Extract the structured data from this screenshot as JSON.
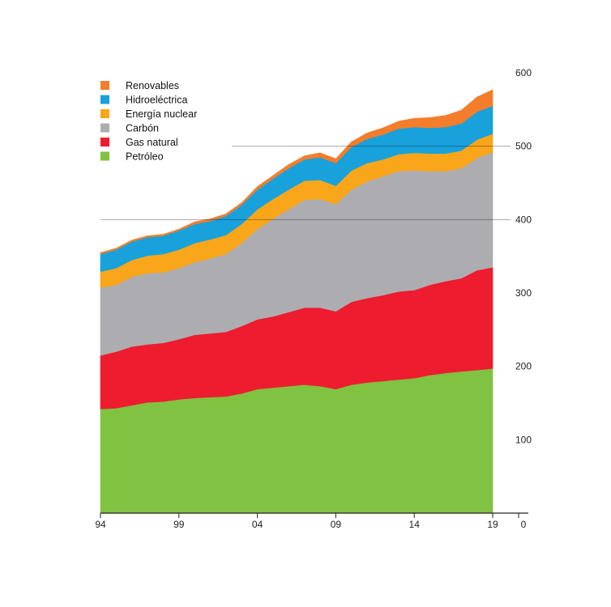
{
  "chart_data": {
    "type": "area",
    "stacked": true,
    "x": [
      1994,
      1995,
      1996,
      1997,
      1998,
      1999,
      2000,
      2001,
      2002,
      2003,
      2004,
      2005,
      2006,
      2007,
      2008,
      2009,
      2010,
      2011,
      2012,
      2013,
      2014,
      2015,
      2016,
      2017,
      2018,
      2019
    ],
    "x_tick_values": [
      1994,
      1999,
      2004,
      2009,
      2014,
      2019
    ],
    "x_tick_labels": [
      "94",
      "99",
      "04",
      "09",
      "14",
      "19"
    ],
    "y_ticks": [
      0,
      100,
      200,
      300,
      400,
      500,
      600
    ],
    "ylim": [
      0,
      600
    ],
    "ygrid_values": [
      400,
      500
    ],
    "y_axis_position": "right",
    "legend_position": "top-left",
    "series": [
      {
        "name": "Petróleo",
        "color": "#80c241",
        "values": [
          142,
          143,
          147,
          151,
          152,
          155,
          157,
          158,
          159,
          163,
          169,
          171,
          173,
          175,
          173,
          169,
          175,
          178,
          180,
          182,
          184,
          188,
          191,
          193,
          195,
          197
        ]
      },
      {
        "name": "Gas natural",
        "color": "#ed1c2e",
        "values": [
          73,
          77,
          80,
          79,
          80,
          82,
          86,
          87,
          88,
          92,
          95,
          97,
          101,
          105,
          107,
          106,
          113,
          115,
          117,
          120,
          120,
          123,
          125,
          127,
          136,
          138
        ]
      },
      {
        "name": "Carbón",
        "color": "#adadb1",
        "values": [
          92,
          91,
          95,
          97,
          96,
          97,
          99,
          102,
          106,
          113,
          123,
          133,
          140,
          147,
          148,
          146,
          153,
          159,
          162,
          164,
          163,
          155,
          150,
          150,
          153,
          157
        ]
      },
      {
        "name": "Energía nuclear",
        "color": "#f9a61a",
        "values": [
          22,
          23,
          23,
          24,
          25,
          25,
          26,
          26,
          26,
          26,
          27,
          27,
          27,
          26,
          26,
          25,
          26,
          25,
          23,
          23,
          24,
          24,
          24,
          24,
          25,
          25
        ]
      },
      {
        "name": "Hidroeléctrica",
        "color": "#19a1dc",
        "values": [
          24,
          25,
          25,
          25,
          25,
          26,
          26,
          25,
          26,
          26,
          27,
          28,
          29,
          29,
          31,
          31,
          32,
          33,
          34,
          35,
          35,
          35,
          36,
          37,
          38,
          38
        ]
      },
      {
        "name": "Renovables",
        "color": "#f47d2b",
        "values": [
          2,
          2,
          2,
          2,
          2,
          2,
          3,
          3,
          3,
          3,
          4,
          4,
          5,
          5,
          6,
          6,
          7,
          8,
          9,
          10,
          12,
          14,
          16,
          18,
          20,
          22
        ]
      }
    ],
    "legend_order": [
      "Renovables",
      "Hidroeléctrica",
      "Energía nuclear",
      "Carbón",
      "Gas natural",
      "Petróleo"
    ]
  }
}
